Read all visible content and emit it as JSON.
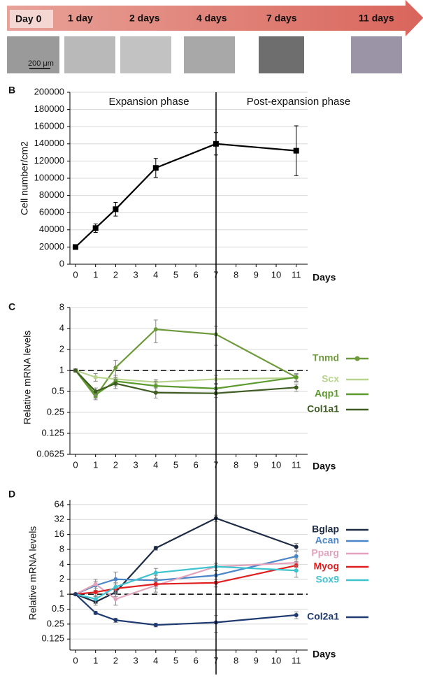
{
  "timeline": {
    "labels": [
      "Day 0",
      "1 day",
      "2 days",
      "4 days",
      "7 days",
      "11 days"
    ],
    "scale_bar": "200 μm"
  },
  "chart_data": [
    {
      "type": "line",
      "panel": "B",
      "ylabel": "Cell number/cm2",
      "xlabel": "Days",
      "annotations": [
        "Expansion phase",
        "Post-expansion phase"
      ],
      "x": [
        0,
        1,
        2,
        4,
        7,
        11
      ],
      "values": [
        20000,
        42000,
        64000,
        112000,
        140000,
        132000
      ],
      "errors": [
        2000,
        5000,
        8000,
        11000,
        13000,
        29000
      ],
      "color": "#000000",
      "xlim": [
        0,
        11
      ],
      "xticks": [
        0,
        1,
        2,
        3,
        4,
        5,
        6,
        7,
        8,
        9,
        10,
        11
      ],
      "ylim": [
        0,
        200000
      ],
      "yticks": [
        0,
        20000,
        40000,
        60000,
        80000,
        100000,
        120000,
        140000,
        160000,
        180000,
        200000
      ],
      "grid": true,
      "marker": "square"
    },
    {
      "type": "line",
      "panel": "C",
      "ylabel": "Relative mRNA levels",
      "xlabel": "Days",
      "log": true,
      "reference_line": 1,
      "x": [
        0,
        1,
        2,
        4,
        7,
        11
      ],
      "xlim": [
        0,
        11
      ],
      "xticks": [
        0,
        1,
        2,
        3,
        4,
        5,
        6,
        7,
        8,
        9,
        10,
        11
      ],
      "ylim": [
        0.0625,
        8
      ],
      "yticks": [
        0.0625,
        0.125,
        0.25,
        0.5,
        1,
        2,
        4,
        8
      ],
      "grid": true,
      "series": [
        {
          "name": "Tnmd",
          "color": "#6e9a3c",
          "values": [
            1,
            0.42,
            1.1,
            3.9,
            3.3,
            0.8
          ],
          "errors": [
            0.05,
            0.04,
            0.3,
            1.4,
            1,
            0.1
          ]
        },
        {
          "name": "Scx",
          "color": "#b9d48e",
          "values": [
            1,
            0.8,
            0.75,
            0.68,
            0.75,
            0.78
          ],
          "errors": [
            0.05,
            0.1,
            0.1,
            0.06,
            0.1,
            0.1
          ]
        },
        {
          "name": "Aqp1",
          "color": "#5c9a2e",
          "values": [
            1,
            0.45,
            0.7,
            0.6,
            0.55,
            0.8
          ],
          "errors": [
            0.05,
            0.05,
            0.1,
            0.1,
            0.08,
            0.1
          ]
        },
        {
          "name": "Col1a1",
          "color": "#3f5d22",
          "values": [
            1,
            0.5,
            0.65,
            0.48,
            0.47,
            0.57
          ],
          "errors": [
            0.05,
            0.06,
            0.1,
            0.08,
            0.06,
            0.07
          ]
        }
      ]
    },
    {
      "type": "line",
      "panel": "D",
      "ylabel": "Relative mRNA levels",
      "xlabel": "Days",
      "log": true,
      "reference_line": 1,
      "x": [
        0,
        1,
        2,
        4,
        7,
        11
      ],
      "xlim": [
        0,
        11
      ],
      "xticks": [
        0,
        1,
        2,
        3,
        4,
        5,
        6,
        7,
        8,
        9,
        10,
        11
      ],
      "ylim": [
        0.075,
        80
      ],
      "yticks": [
        0.125,
        0.25,
        0.5,
        1,
        2,
        4,
        8,
        16,
        32,
        64
      ],
      "grid": true,
      "series": [
        {
          "name": "Bglap",
          "color": "#1d2b45",
          "values": [
            1,
            0.7,
            1.1,
            8.5,
            34,
            9
          ],
          "errors": [
            0.05,
            0.1,
            0.2,
            0.8,
            5,
            1.5
          ]
        },
        {
          "name": "Acan",
          "color": "#4a86c8",
          "values": [
            1,
            1.5,
            2,
            1.9,
            2.4,
            5.8
          ],
          "errors": [
            0.05,
            0.3,
            0.8,
            0.5,
            0.6,
            1.5
          ]
        },
        {
          "name": "Pparg",
          "color": "#e2a4bc",
          "values": [
            1,
            1.6,
            0.8,
            1.5,
            3.6,
            4.3
          ],
          "errors": [
            0.05,
            0.4,
            0.2,
            0.4,
            0.6,
            0.8
          ]
        },
        {
          "name": "Myog",
          "color": "#e02020",
          "values": [
            1,
            1.1,
            1.3,
            1.6,
            1.7,
            3.8
          ],
          "errors": [
            0.05,
            0.2,
            0.3,
            0.3,
            0.3,
            0.8
          ]
        },
        {
          "name": "Sox9",
          "color": "#3fc3cf",
          "values": [
            1,
            0.8,
            1.4,
            2.7,
            3.6,
            3
          ],
          "errors": [
            0.05,
            0.15,
            0.3,
            0.6,
            0.6,
            0.8
          ]
        },
        {
          "name": "Col2a1",
          "color": "#1f3a70",
          "values": [
            1,
            0.42,
            0.3,
            0.24,
            0.27,
            0.38
          ],
          "errors": [
            0.05,
            0.03,
            0.03,
            0.02,
            0.1,
            0.06
          ]
        }
      ]
    }
  ]
}
